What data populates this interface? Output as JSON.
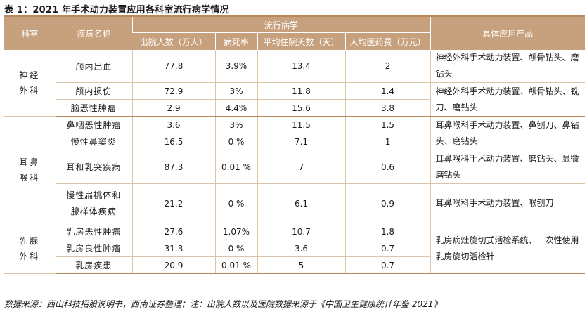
{
  "title": "表 1：2021 年手术动力装置应用各科室流行病学情况",
  "header": {
    "dept": "科室",
    "disease": "疾病名称",
    "epi_group": "流行病学",
    "inpatients": "出院人数（万人）",
    "mortality": "病死率",
    "avg_days": "平均住院天数（天）",
    "avg_cost": "人均医药费（万元）",
    "products": "具体应用产品"
  },
  "groups": [
    {
      "dept": "神经外科",
      "rows": [
        {
          "disease": "颅内出血",
          "inpatients": "77.8",
          "mortality": "3.9%",
          "avg_days": "13.4",
          "avg_cost": "2"
        },
        {
          "disease": "颅内损伤",
          "inpatients": "72.9",
          "mortality": "3%",
          "avg_days": "11.8",
          "avg_cost": "1.4"
        },
        {
          "disease": "脑恶性肿瘤",
          "inpatients": "2.9",
          "mortality": "4.4%",
          "avg_days": "15.6",
          "avg_cost": "3.8"
        }
      ],
      "products": [
        "神经外科手术动力装置、颅骨钻头、磨钻头",
        "神经外科手术动力装置、颅骨钻头、铣刀、磨钻头"
      ]
    },
    {
      "dept": "耳鼻喉科",
      "rows": [
        {
          "disease": "鼻咽恶性肿瘤",
          "inpatients": "3.6",
          "mortality": "3%",
          "avg_days": "11.5",
          "avg_cost": "1.5"
        },
        {
          "disease": "慢性鼻窦炎",
          "inpatients": "16.5",
          "mortality": "0 %",
          "avg_days": "7.1",
          "avg_cost": "1"
        },
        {
          "disease": "耳和乳突疾病",
          "inpatients": "87.3",
          "mortality": "0.01 %",
          "avg_days": "7",
          "avg_cost": "0.6"
        },
        {
          "disease_line1": "慢性扁桃体和",
          "disease_line2": "腺样体疾病",
          "inpatients": "21.2",
          "mortality": "0 %",
          "avg_days": "6.1",
          "avg_cost": "0.9"
        }
      ],
      "products": [
        "耳鼻喉科手术动力装置、鼻刨刀、鼻钻头、磨钻头",
        "耳鼻喉科手术动力装置、磨钻头、显微磨钻头",
        "耳鼻喉科手术动力装置、喉刨刀"
      ]
    },
    {
      "dept": "乳腺外科",
      "rows": [
        {
          "disease": "乳房恶性肿瘤",
          "inpatients": "27.6",
          "mortality": "1.07%",
          "avg_days": "10.7",
          "avg_cost": "1.8"
        },
        {
          "disease": "乳房良性肿瘤",
          "inpatients": "31.3",
          "mortality": "0 %",
          "avg_days": "3.6",
          "avg_cost": "0.7"
        },
        {
          "disease": "乳房疾患",
          "inpatients": "20.9",
          "mortality": "0.01 %",
          "avg_days": "5",
          "avg_cost": "0.7"
        }
      ],
      "products": [
        "乳房病灶旋切式活检系统、一次性使用乳房旋切活检针"
      ]
    }
  ],
  "source": "数据来源：西山科技招股说明书，西南证券整理；注：出院人数以及医院数据来源于《中国卫生健康统计年鉴 2021》"
}
